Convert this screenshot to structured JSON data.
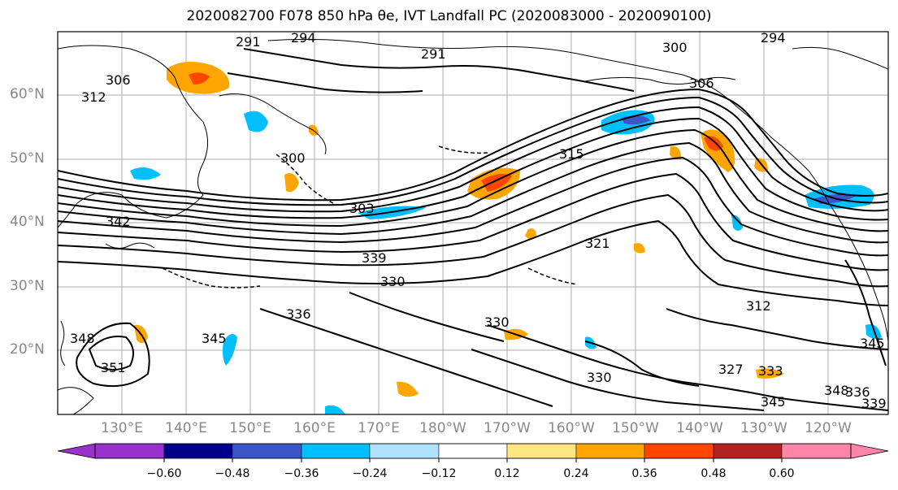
{
  "title": "2020082700 F078 850 hPa θe, IVT Landfall PC (2020083000 - 2020090100)",
  "lat_labels": [
    "60°N",
    "50°N",
    "40°N",
    "30°N",
    "20°N"
  ],
  "lon_labels": [
    "130°E",
    "140°E",
    "150°E",
    "160°E",
    "170°E",
    "180°W",
    "170°W",
    "160°W",
    "150°W",
    "140°W",
    "130°W",
    "120°W"
  ],
  "contour_labels": [
    "291",
    "294",
    "291",
    "300",
    "294",
    "306",
    "312",
    "306",
    "300",
    "303",
    "315",
    "321",
    "339",
    "330",
    "336",
    "330",
    "348",
    "351",
    "345",
    "330",
    "327",
    "312",
    "333",
    "345",
    "345",
    "336",
    "339",
    "348",
    "342"
  ],
  "colorbar": {
    "ticks": [
      "−0.60",
      "−0.48",
      "−0.36",
      "−0.24",
      "−0.12",
      "0.12",
      "0.24",
      "0.36",
      "0.48",
      "0.60"
    ],
    "colors": [
      "#9932cc",
      "#00008b",
      "#3a57c9",
      "#00bfff",
      "#b0e2ff",
      "#ffffff",
      "#ffe680",
      "#ffa500",
      "#ff4500",
      "#b22222",
      "#ff85a8"
    ]
  }
}
